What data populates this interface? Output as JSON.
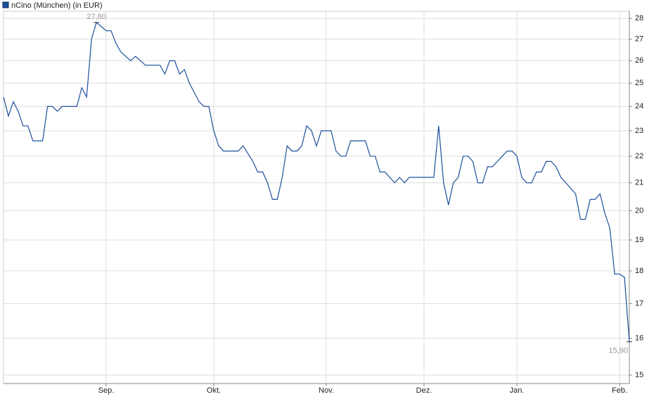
{
  "chart_data": {
    "type": "line",
    "categories": [
      null,
      null,
      null,
      null,
      null,
      null,
      null,
      null,
      null,
      null,
      null,
      null,
      null,
      null,
      null,
      null,
      null,
      null,
      null,
      null,
      null,
      "Sep.",
      null,
      null,
      null,
      null,
      null,
      null,
      null,
      null,
      null,
      null,
      null,
      null,
      null,
      null,
      null,
      null,
      null,
      null,
      null,
      null,
      null,
      "Okt.",
      null,
      null,
      null,
      null,
      null,
      null,
      null,
      null,
      null,
      null,
      null,
      null,
      null,
      null,
      null,
      null,
      null,
      null,
      null,
      null,
      null,
      null,
      "Nov.",
      null,
      null,
      null,
      null,
      null,
      null,
      null,
      null,
      null,
      null,
      null,
      null,
      null,
      null,
      null,
      null,
      null,
      null,
      null,
      "Dez.",
      null,
      null,
      null,
      null,
      null,
      null,
      null,
      null,
      null,
      null,
      null,
      null,
      null,
      null,
      null,
      null,
      null,
      null,
      "Jan.",
      null,
      null,
      null,
      null,
      null,
      null,
      null,
      null,
      null,
      null,
      null,
      null,
      null,
      null,
      null,
      null,
      null,
      null,
      null,
      null,
      "Feb.",
      null,
      null
    ],
    "series": [
      {
        "name": "nCino (München) (in EUR)",
        "color": "#1c4f9c",
        "values": [
          24.4,
          23.6,
          24.2,
          23.8,
          23.2,
          23.2,
          22.6,
          22.6,
          22.6,
          24.0,
          24.0,
          23.8,
          24.0,
          24.0,
          24.0,
          24.0,
          24.8,
          24.4,
          27.0,
          27.8,
          27.6,
          27.4,
          27.4,
          26.8,
          26.4,
          26.2,
          26.0,
          26.2,
          26.0,
          25.8,
          25.8,
          25.8,
          25.8,
          25.4,
          26.0,
          26.0,
          25.4,
          25.6,
          25.0,
          24.6,
          24.2,
          24.0,
          24.0,
          23.0,
          22.4,
          22.2,
          22.2,
          22.2,
          22.2,
          22.4,
          22.1,
          21.8,
          21.4,
          21.4,
          21.0,
          20.4,
          20.4,
          21.2,
          22.4,
          22.2,
          22.2,
          22.4,
          23.2,
          23.0,
          22.4,
          23.0,
          23.0,
          23.0,
          22.2,
          22.0,
          22.0,
          22.6,
          22.6,
          22.6,
          22.6,
          22.0,
          22.0,
          21.4,
          21.4,
          21.2,
          21.0,
          21.2,
          21.0,
          21.2,
          21.2,
          21.2,
          21.2,
          21.2,
          21.2,
          23.2,
          21.0,
          20.2,
          21.0,
          21.2,
          22.0,
          22.0,
          21.8,
          21.0,
          21.0,
          21.6,
          21.6,
          21.8,
          22.0,
          22.2,
          22.2,
          22.0,
          21.2,
          21.0,
          21.0,
          21.4,
          21.4,
          21.8,
          21.8,
          21.6,
          21.2,
          21.0,
          20.8,
          20.6,
          19.7,
          19.7,
          20.4,
          20.4,
          20.6,
          19.9,
          19.4,
          17.9,
          17.9,
          17.8,
          15.9
        ],
        "value_labels": [
          null,
          null,
          null,
          null,
          null,
          null,
          null,
          null,
          null,
          null,
          null,
          null,
          null,
          null,
          null,
          null,
          null,
          null,
          null,
          "27,80",
          null,
          null,
          null,
          null,
          null,
          null,
          null,
          null,
          null,
          null,
          null,
          null,
          null,
          null,
          null,
          null,
          null,
          null,
          null,
          null,
          null,
          null,
          null,
          null,
          null,
          null,
          null,
          null,
          null,
          null,
          null,
          null,
          null,
          null,
          null,
          null,
          null,
          null,
          null,
          null,
          null,
          null,
          null,
          null,
          null,
          null,
          null,
          null,
          null,
          null,
          null,
          null,
          null,
          null,
          null,
          null,
          null,
          null,
          null,
          null,
          null,
          null,
          null,
          null,
          null,
          null,
          null,
          null,
          null,
          null,
          null,
          null,
          null,
          null,
          null,
          null,
          null,
          null,
          null,
          null,
          null,
          null,
          null,
          null,
          null,
          null,
          null,
          null,
          null,
          null,
          null,
          null,
          null,
          null,
          null,
          null,
          null,
          null,
          null,
          null,
          null,
          null,
          null,
          null,
          null,
          null,
          null,
          null,
          "15,90"
        ]
      }
    ],
    "ylim": [
      14.78,
      28.35
    ],
    "yticks": [
      15,
      16,
      17,
      18,
      19,
      20,
      21,
      22,
      23,
      24,
      25,
      26,
      27,
      28
    ],
    "log_y": true,
    "grid": true
  }
}
